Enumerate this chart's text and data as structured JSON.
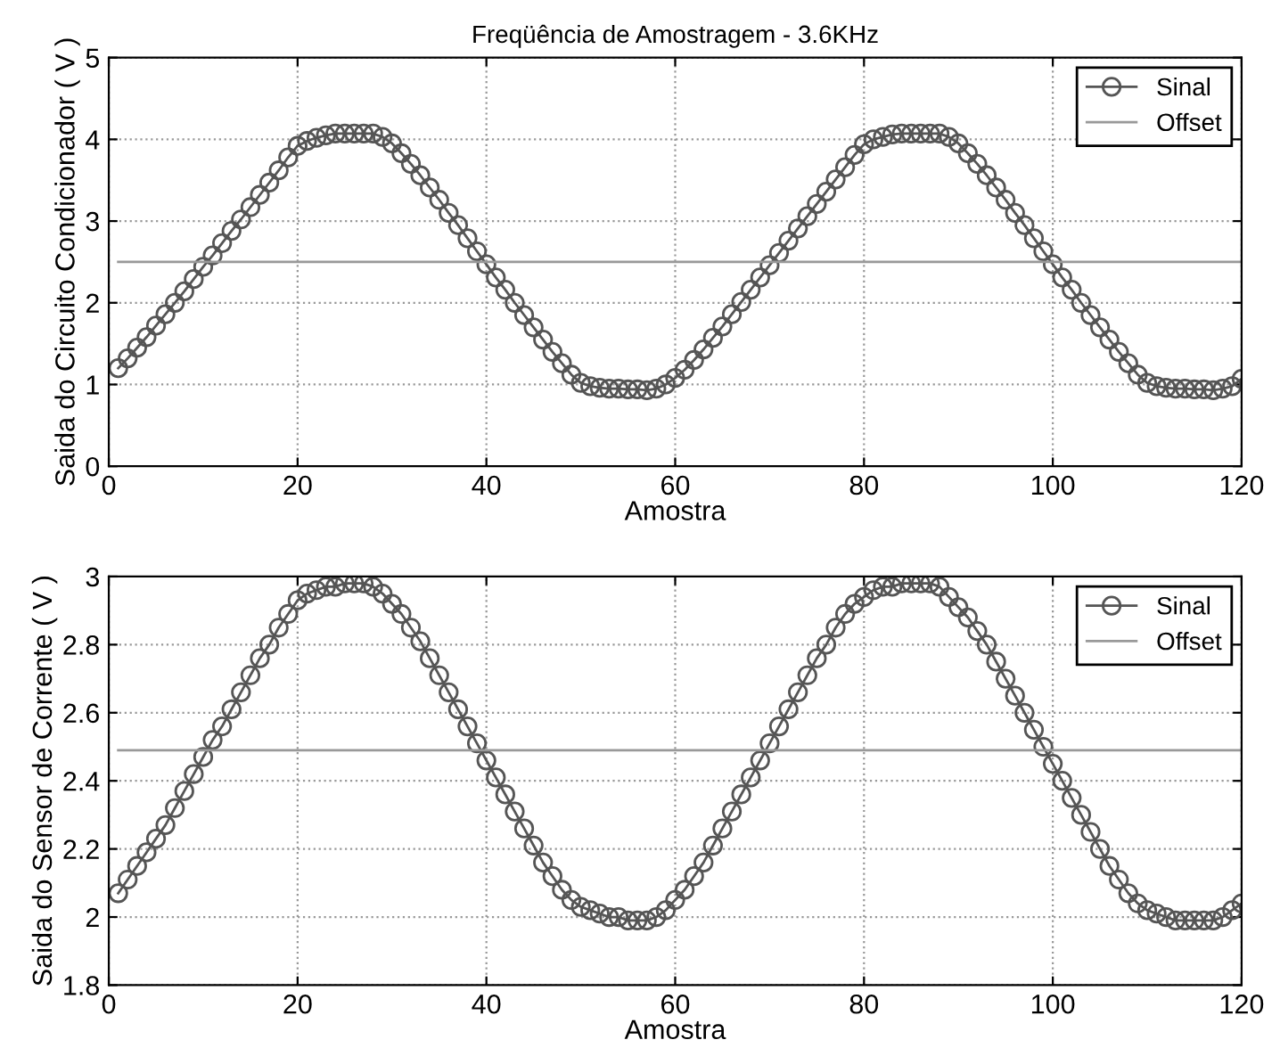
{
  "chart_data": [
    {
      "type": "line",
      "title": "Freqüência de Amostragem - 3.6KHz",
      "xlabel": "Amostra",
      "ylabel": "Saida do Circuito Condicionador ( V )",
      "xlim": [
        0,
        120
      ],
      "xticks": [
        0,
        20,
        40,
        60,
        80,
        100,
        120
      ],
      "ylim": [
        0,
        5
      ],
      "yticks": [
        0,
        1,
        2,
        3,
        4,
        5
      ],
      "grid": true,
      "legend": "top right",
      "series": [
        {
          "name": "Sinal",
          "color": "#555555",
          "marker": "circle",
          "x": [
            1,
            2,
            3,
            4,
            5,
            6,
            7,
            8,
            9,
            10,
            11,
            12,
            13,
            14,
            15,
            16,
            17,
            18,
            19,
            20,
            21,
            22,
            23,
            24,
            25,
            26,
            27,
            28,
            29,
            30,
            31,
            32,
            33,
            34,
            35,
            36,
            37,
            38,
            39,
            40,
            41,
            42,
            43,
            44,
            45,
            46,
            47,
            48,
            49,
            50,
            51,
            52,
            53,
            54,
            55,
            56,
            57,
            58,
            59,
            60,
            61,
            62,
            63,
            64,
            65,
            66,
            67,
            68,
            69,
            70,
            71,
            72,
            73,
            74,
            75,
            76,
            77,
            78,
            79,
            80,
            81,
            82,
            83,
            84,
            85,
            86,
            87,
            88,
            89,
            90,
            91,
            92,
            93,
            94,
            95,
            96,
            97,
            98,
            99,
            100,
            101,
            102,
            103,
            104,
            105,
            106,
            107,
            108,
            109,
            110,
            111,
            112,
            113,
            114,
            115,
            116,
            117,
            118,
            119,
            120
          ],
          "values": [
            1.2,
            1.32,
            1.45,
            1.58,
            1.72,
            1.86,
            2.0,
            2.14,
            2.29,
            2.44,
            2.58,
            2.73,
            2.88,
            3.02,
            3.17,
            3.32,
            3.47,
            3.62,
            3.78,
            3.92,
            3.98,
            4.02,
            4.05,
            4.07,
            4.07,
            4.07,
            4.07,
            4.07,
            4.03,
            3.95,
            3.83,
            3.7,
            3.56,
            3.41,
            3.26,
            3.1,
            2.95,
            2.79,
            2.63,
            2.47,
            2.31,
            2.16,
            2.0,
            1.85,
            1.7,
            1.55,
            1.4,
            1.26,
            1.12,
            1.02,
            0.98,
            0.96,
            0.95,
            0.95,
            0.94,
            0.94,
            0.93,
            0.95,
            1.0,
            1.08,
            1.18,
            1.3,
            1.43,
            1.57,
            1.71,
            1.86,
            2.01,
            2.16,
            2.31,
            2.46,
            2.61,
            2.76,
            2.91,
            3.06,
            3.21,
            3.36,
            3.51,
            3.66,
            3.81,
            3.94,
            4.0,
            4.03,
            4.06,
            4.07,
            4.07,
            4.07,
            4.07,
            4.07,
            4.03,
            3.95,
            3.83,
            3.7,
            3.56,
            3.41,
            3.26,
            3.1,
            2.95,
            2.79,
            2.63,
            2.47,
            2.31,
            2.16,
            2.0,
            1.85,
            1.7,
            1.55,
            1.4,
            1.26,
            1.12,
            1.02,
            0.98,
            0.96,
            0.95,
            0.95,
            0.94,
            0.94,
            0.93,
            0.95,
            0.98,
            1.07
          ]
        },
        {
          "name": "Offset",
          "color": "#999999",
          "marker": "none",
          "x": [
            1,
            120
          ],
          "values": [
            2.5,
            2.5
          ]
        }
      ]
    },
    {
      "type": "line",
      "xlabel": "Amostra",
      "ylabel": "Saida do Sensor de Corrente ( V )",
      "xlim": [
        0,
        120
      ],
      "xticks": [
        0,
        20,
        40,
        60,
        80,
        100,
        120
      ],
      "ylim": [
        1.8,
        3
      ],
      "yticks": [
        1.8,
        2,
        2.2,
        2.4,
        2.6,
        2.8,
        3
      ],
      "grid": true,
      "legend": "top right",
      "series": [
        {
          "name": "Sinal",
          "color": "#555555",
          "marker": "circle",
          "x": [
            1,
            2,
            3,
            4,
            5,
            6,
            7,
            8,
            9,
            10,
            11,
            12,
            13,
            14,
            15,
            16,
            17,
            18,
            19,
            20,
            21,
            22,
            23,
            24,
            25,
            26,
            27,
            28,
            29,
            30,
            31,
            32,
            33,
            34,
            35,
            36,
            37,
            38,
            39,
            40,
            41,
            42,
            43,
            44,
            45,
            46,
            47,
            48,
            49,
            50,
            51,
            52,
            53,
            54,
            55,
            56,
            57,
            58,
            59,
            60,
            61,
            62,
            63,
            64,
            65,
            66,
            67,
            68,
            69,
            70,
            71,
            72,
            73,
            74,
            75,
            76,
            77,
            78,
            79,
            80,
            81,
            82,
            83,
            84,
            85,
            86,
            87,
            88,
            89,
            90,
            91,
            92,
            93,
            94,
            95,
            96,
            97,
            98,
            99,
            100,
            101,
            102,
            103,
            104,
            105,
            106,
            107,
            108,
            109,
            110,
            111,
            112,
            113,
            114,
            115,
            116,
            117,
            118,
            119,
            120
          ],
          "values": [
            2.07,
            2.11,
            2.15,
            2.19,
            2.23,
            2.27,
            2.32,
            2.37,
            2.42,
            2.47,
            2.52,
            2.56,
            2.61,
            2.66,
            2.71,
            2.76,
            2.8,
            2.85,
            2.89,
            2.93,
            2.95,
            2.96,
            2.97,
            2.97,
            2.98,
            2.98,
            2.98,
            2.97,
            2.95,
            2.92,
            2.89,
            2.85,
            2.81,
            2.76,
            2.71,
            2.66,
            2.61,
            2.56,
            2.51,
            2.46,
            2.41,
            2.36,
            2.31,
            2.26,
            2.21,
            2.16,
            2.12,
            2.08,
            2.05,
            2.03,
            2.02,
            2.01,
            2.0,
            2.0,
            1.99,
            1.99,
            1.99,
            2.0,
            2.02,
            2.05,
            2.08,
            2.12,
            2.16,
            2.21,
            2.26,
            2.31,
            2.36,
            2.41,
            2.46,
            2.51,
            2.56,
            2.61,
            2.66,
            2.71,
            2.76,
            2.8,
            2.85,
            2.89,
            2.92,
            2.94,
            2.96,
            2.97,
            2.97,
            2.98,
            2.98,
            2.98,
            2.98,
            2.97,
            2.94,
            2.91,
            2.88,
            2.84,
            2.8,
            2.75,
            2.7,
            2.65,
            2.6,
            2.55,
            2.5,
            2.45,
            2.4,
            2.35,
            2.3,
            2.25,
            2.2,
            2.15,
            2.11,
            2.07,
            2.04,
            2.02,
            2.01,
            2.0,
            1.99,
            1.99,
            1.99,
            1.99,
            1.99,
            2.0,
            2.02,
            2.04
          ]
        },
        {
          "name": "Offset",
          "color": "#999999",
          "marker": "none",
          "x": [
            1,
            120
          ],
          "values": [
            2.49,
            2.49
          ]
        }
      ]
    }
  ]
}
